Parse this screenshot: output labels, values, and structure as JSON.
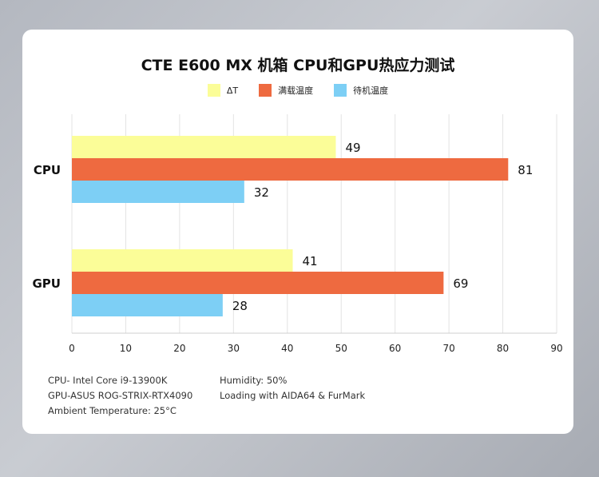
{
  "chart_data": {
    "type": "bar",
    "orientation": "horizontal",
    "title": "CTE E600 MX 机箱 CPU和GPU热应力测试",
    "categories": [
      "CPU",
      "GPU"
    ],
    "series": [
      {
        "name": "ΔT",
        "color": "#fbfd98",
        "values": [
          49,
          41
        ]
      },
      {
        "name": "满载温度",
        "color": "#ee6a40",
        "values": [
          81,
          69
        ]
      },
      {
        "name": "待机温度",
        "color": "#7dcff5",
        "values": [
          32,
          28
        ]
      }
    ],
    "xlim": [
      0,
      90
    ],
    "xticks": [
      0,
      10,
      20,
      30,
      40,
      50,
      60,
      70,
      80,
      90
    ],
    "grid": true,
    "legend": "top-center"
  },
  "notes": {
    "left": [
      "CPU- Intel Core  i9-13900K",
      "GPU-ASUS ROG-STRIX-RTX4090",
      "Ambient Temperature: 25°C"
    ],
    "right": [
      "Humidity: 50%",
      "Loading with AIDA64 & FurMark"
    ]
  }
}
